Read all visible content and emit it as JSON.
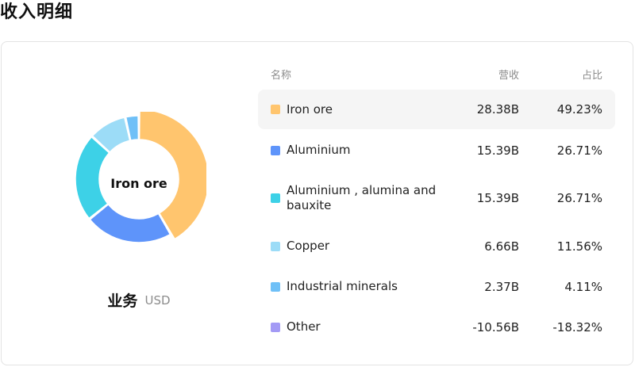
{
  "page": {
    "title": "收入明细"
  },
  "donut": {
    "center_label": "Iron ore",
    "segment_label": "业务",
    "unit_label": "USD"
  },
  "table": {
    "headers": {
      "name": "名称",
      "revenue": "营收",
      "share": "占比"
    },
    "rows": [
      {
        "name": "Iron ore",
        "revenue": "28.38B",
        "share": "49.23%",
        "color": "#FFC56E",
        "active": true
      },
      {
        "name": "Aluminium",
        "revenue": "15.39B",
        "share": "26.71%",
        "color": "#5E94FA",
        "active": false
      },
      {
        "name": "Aluminium , alumina and bauxite",
        "revenue": "15.39B",
        "share": "26.71%",
        "color": "#3DD1E7",
        "active": false
      },
      {
        "name": "Copper",
        "revenue": "6.66B",
        "share": "11.56%",
        "color": "#9CDCF7",
        "active": false
      },
      {
        "name": "Industrial minerals",
        "revenue": "2.37B",
        "share": "4.11%",
        "color": "#6FC0F7",
        "active": false
      },
      {
        "name": "Other",
        "revenue": "-10.56B",
        "share": "-18.32%",
        "color": "#A39AF5",
        "active": false
      }
    ]
  },
  "chart_data": {
    "type": "pie",
    "title": "",
    "categories": [
      "Iron ore",
      "Aluminium",
      "Aluminium , alumina and bauxite",
      "Copper",
      "Industrial minerals",
      "Other"
    ],
    "values": [
      28.38,
      15.39,
      15.39,
      6.66,
      2.37,
      -10.56
    ],
    "shares": [
      49.23,
      26.71,
      26.71,
      11.56,
      4.11,
      -18.32
    ],
    "colors": [
      "#FFC56E",
      "#5E94FA",
      "#3DD1E7",
      "#9CDCF7",
      "#6FC0F7",
      "#A39AF5"
    ],
    "highlighted": "Iron ore",
    "legend": "right"
  }
}
